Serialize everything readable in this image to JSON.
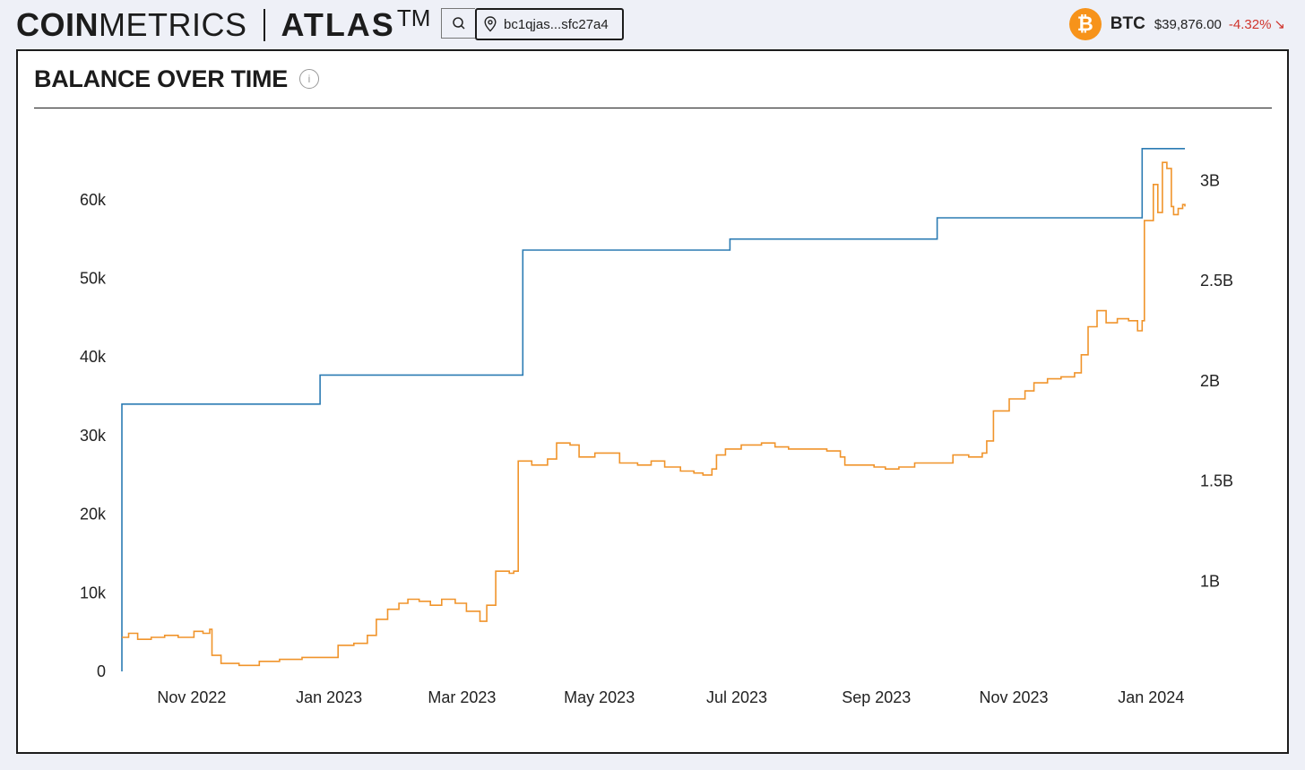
{
  "header": {
    "logo_coin": "COIN",
    "logo_metrics": "METRICS",
    "logo_atlas": "ATLAS",
    "logo_tm": "TM",
    "search_icon": "search-icon",
    "address_icon": "location-pin-icon",
    "address": "bc1qjas...sfc27a4",
    "asset_icon": "bitcoin-icon",
    "asset_symbol": "BTC",
    "asset_price": "$39,876.00",
    "asset_change": "-4.32%",
    "asset_change_icon": "arrow-down-right-icon",
    "asset_change_color": "#d0342c",
    "asset_color": "#f7931a"
  },
  "card": {
    "title": "BALANCE OVER TIME",
    "info_icon": "info-icon"
  },
  "chart_data": {
    "type": "line",
    "title": "BALANCE OVER TIME",
    "x_ticks": [
      "Nov 2022",
      "Jan 2023",
      "Mar 2023",
      "May 2023",
      "Jul 2023",
      "Sep 2023",
      "Nov 2023",
      "Jan 2024"
    ],
    "xlim": [
      "2022-10-01",
      "2024-01-16"
    ],
    "y_left_ticks": [
      "0",
      "10k",
      "20k",
      "30k",
      "40k",
      "50k",
      "60k"
    ],
    "y_left_lim": [
      0,
      65000
    ],
    "y_right_ticks": [
      "1B",
      "1.5B",
      "2B",
      "2.5B",
      "3B"
    ],
    "y_right_lim": [
      0.55,
      3.1
    ],
    "grid": false,
    "legend": "none",
    "series": [
      {
        "axis": "left",
        "color": "#2b7bb3",
        "shape": "step",
        "points": [
          [
            "2022-10-01",
            0
          ],
          [
            "2022-10-01",
            34000
          ],
          [
            "2022-12-28",
            34000
          ],
          [
            "2022-12-28",
            37700
          ],
          [
            "2023-03-28",
            37700
          ],
          [
            "2023-03-28",
            53600
          ],
          [
            "2023-06-28",
            53600
          ],
          [
            "2023-06-28",
            55000
          ],
          [
            "2023-09-28",
            55000
          ],
          [
            "2023-09-28",
            57700
          ],
          [
            "2023-12-28",
            57700
          ],
          [
            "2023-12-28",
            66500
          ],
          [
            "2024-01-16",
            66500
          ]
        ]
      },
      {
        "axis": "right",
        "color": "#f0942b",
        "shape": "line",
        "points": [
          [
            "2022-10-01",
            0.72
          ],
          [
            "2022-10-04",
            0.74
          ],
          [
            "2022-10-08",
            0.71
          ],
          [
            "2022-10-14",
            0.72
          ],
          [
            "2022-10-20",
            0.73
          ],
          [
            "2022-10-26",
            0.72
          ],
          [
            "2022-11-02",
            0.75
          ],
          [
            "2022-11-06",
            0.74
          ],
          [
            "2022-11-09",
            0.76
          ],
          [
            "2022-11-10",
            0.63
          ],
          [
            "2022-11-14",
            0.59
          ],
          [
            "2022-11-22",
            0.58
          ],
          [
            "2022-12-01",
            0.6
          ],
          [
            "2022-12-10",
            0.61
          ],
          [
            "2022-12-20",
            0.62
          ],
          [
            "2022-12-28",
            0.62
          ],
          [
            "2023-01-05",
            0.68
          ],
          [
            "2023-01-12",
            0.69
          ],
          [
            "2023-01-18",
            0.73
          ],
          [
            "2023-01-22",
            0.81
          ],
          [
            "2023-01-27",
            0.86
          ],
          [
            "2023-02-01",
            0.89
          ],
          [
            "2023-02-05",
            0.91
          ],
          [
            "2023-02-10",
            0.9
          ],
          [
            "2023-02-15",
            0.88
          ],
          [
            "2023-02-20",
            0.91
          ],
          [
            "2023-02-26",
            0.89
          ],
          [
            "2023-03-03",
            0.85
          ],
          [
            "2023-03-09",
            0.8
          ],
          [
            "2023-03-12",
            0.88
          ],
          [
            "2023-03-16",
            1.05
          ],
          [
            "2023-03-22",
            1.04
          ],
          [
            "2023-03-24",
            1.05
          ],
          [
            "2023-03-26",
            1.6
          ],
          [
            "2023-04-01",
            1.58
          ],
          [
            "2023-04-08",
            1.61
          ],
          [
            "2023-04-12",
            1.69
          ],
          [
            "2023-04-18",
            1.68
          ],
          [
            "2023-04-22",
            1.62
          ],
          [
            "2023-04-29",
            1.64
          ],
          [
            "2023-05-04",
            1.64
          ],
          [
            "2023-05-10",
            1.59
          ],
          [
            "2023-05-18",
            1.58
          ],
          [
            "2023-05-24",
            1.6
          ],
          [
            "2023-05-30",
            1.57
          ],
          [
            "2023-06-06",
            1.55
          ],
          [
            "2023-06-12",
            1.54
          ],
          [
            "2023-06-16",
            1.53
          ],
          [
            "2023-06-20",
            1.56
          ],
          [
            "2023-06-22",
            1.63
          ],
          [
            "2023-06-26",
            1.66
          ],
          [
            "2023-07-03",
            1.68
          ],
          [
            "2023-07-12",
            1.69
          ],
          [
            "2023-07-18",
            1.67
          ],
          [
            "2023-07-24",
            1.66
          ],
          [
            "2023-07-31",
            1.66
          ],
          [
            "2023-08-10",
            1.65
          ],
          [
            "2023-08-16",
            1.62
          ],
          [
            "2023-08-18",
            1.58
          ],
          [
            "2023-08-25",
            1.58
          ],
          [
            "2023-08-31",
            1.57
          ],
          [
            "2023-09-05",
            1.56
          ],
          [
            "2023-09-11",
            1.57
          ],
          [
            "2023-09-18",
            1.59
          ],
          [
            "2023-09-24",
            1.59
          ],
          [
            "2023-09-28",
            1.59
          ],
          [
            "2023-10-05",
            1.63
          ],
          [
            "2023-10-12",
            1.62
          ],
          [
            "2023-10-18",
            1.64
          ],
          [
            "2023-10-20",
            1.7
          ],
          [
            "2023-10-23",
            1.85
          ],
          [
            "2023-10-30",
            1.91
          ],
          [
            "2023-11-06",
            1.95
          ],
          [
            "2023-11-10",
            1.99
          ],
          [
            "2023-11-16",
            2.01
          ],
          [
            "2023-11-22",
            2.02
          ],
          [
            "2023-11-28",
            2.04
          ],
          [
            "2023-12-01",
            2.13
          ],
          [
            "2023-12-04",
            2.27
          ],
          [
            "2023-12-08",
            2.35
          ],
          [
            "2023-12-12",
            2.29
          ],
          [
            "2023-12-17",
            2.31
          ],
          [
            "2023-12-22",
            2.3
          ],
          [
            "2023-12-26",
            2.25
          ],
          [
            "2023-12-28",
            2.3
          ],
          [
            "2023-12-29",
            2.8
          ],
          [
            "2024-01-02",
            2.98
          ],
          [
            "2024-01-04",
            2.84
          ],
          [
            "2024-01-06",
            3.09
          ],
          [
            "2024-01-08",
            3.06
          ],
          [
            "2024-01-10",
            2.87
          ],
          [
            "2024-01-11",
            2.83
          ],
          [
            "2024-01-13",
            2.86
          ],
          [
            "2024-01-15",
            2.88
          ],
          [
            "2024-01-16",
            2.87
          ]
        ]
      }
    ]
  }
}
